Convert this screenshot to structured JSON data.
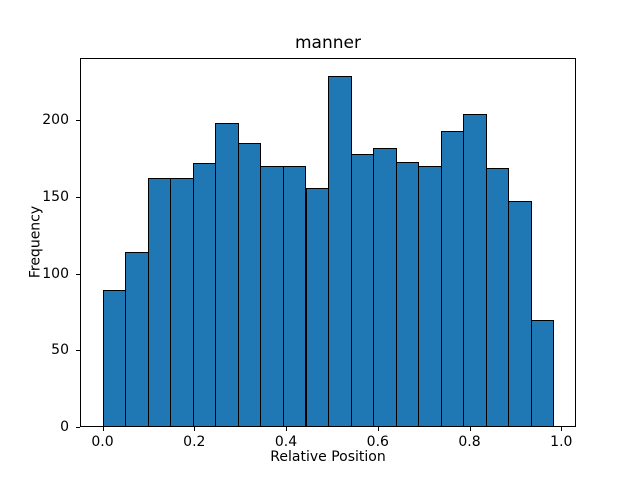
{
  "title": "manner",
  "chart_data": {
    "type": "bar",
    "subtype": "histogram",
    "title": "manner",
    "xlabel": "Relative Position",
    "ylabel": "Frequency",
    "n_bins": 20,
    "bin_start": 0.0,
    "bin_end": 0.983,
    "bin_width": 0.04915,
    "values": [
      89,
      114,
      162,
      162,
      172,
      198,
      185,
      170,
      170,
      156,
      229,
      178,
      182,
      173,
      170,
      193,
      204,
      169,
      147,
      70
    ],
    "xticks": [
      0.0,
      0.2,
      0.4,
      0.6,
      0.8,
      1.0
    ],
    "xtick_labels": [
      "0.0",
      "0.2",
      "0.4",
      "0.6",
      "0.8",
      "1.0"
    ],
    "yticks": [
      0,
      50,
      100,
      150,
      200
    ],
    "ytick_labels": [
      "0",
      "50",
      "100",
      "150",
      "200"
    ],
    "xlim": [
      -0.04915,
      1.03215
    ],
    "ylim": [
      0,
      240.45
    ],
    "grid": false,
    "legend_position": "none",
    "bar_color": "#1f77b4",
    "bar_edge_color": "#000000",
    "background_color": "#ffffff"
  }
}
